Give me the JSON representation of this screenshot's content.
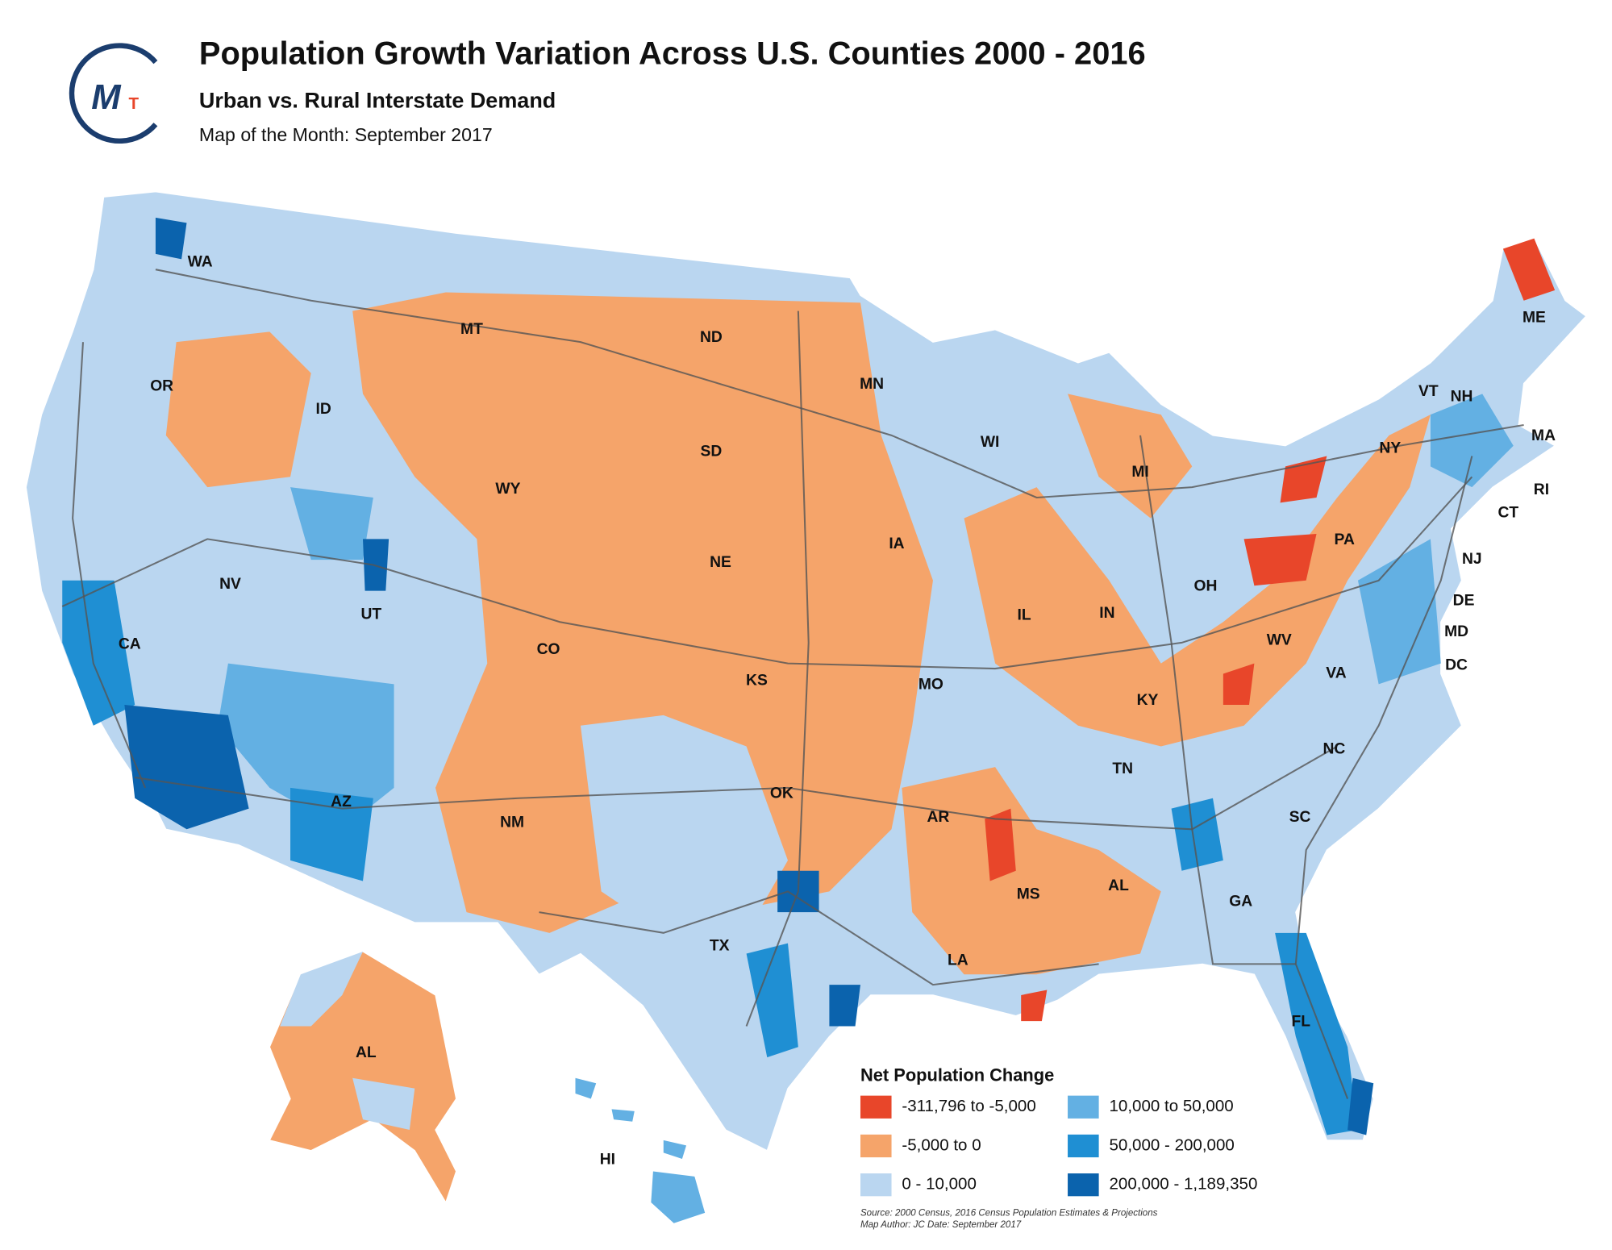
{
  "header": {
    "title": "Population Growth Variation Across U.S. Counties 2000 - 2016",
    "subtitle": "Urban vs. Rural Interstate Demand",
    "map_of_month": "Map of the Month:  September 2017",
    "logo_letters": [
      "M",
      "T"
    ]
  },
  "state_labels": [
    "WA",
    "MT",
    "ND",
    "ME",
    "OR",
    "ID",
    "MN",
    "VT",
    "NH",
    "MA",
    "SD",
    "WI",
    "NY",
    "RI",
    "MI",
    "WY",
    "CT",
    "PA",
    "IA",
    "NE",
    "NJ",
    "NV",
    "OH",
    "DE",
    "IL",
    "IN",
    "UT",
    "CO",
    "CA",
    "WV",
    "MD",
    "DC",
    "VA",
    "KS",
    "MO",
    "KY",
    "OK",
    "TN",
    "NC",
    "AR",
    "AZ",
    "NM",
    "SC",
    "AL",
    "MS",
    "GA",
    "TX",
    "LA",
    "FL",
    "AL",
    "HI"
  ],
  "legend": {
    "title": "Net Population Change",
    "items": [
      {
        "label": "-311,796 to -5,000",
        "color": "#e8462a"
      },
      {
        "label": "-5,000 to 0",
        "color": "#f5a46a"
      },
      {
        "label": "0 - 10,000",
        "color": "#bad6f0"
      },
      {
        "label": "10,000 to 50,000",
        "color": "#63b0e3"
      },
      {
        "label": "50,000 - 200,000",
        "color": "#1f8fd3"
      },
      {
        "label": "200,000 - 1,189,350",
        "color": "#0b63ad"
      }
    ]
  },
  "source": "Source: 2000 Census, 2016 Census Population Estimates & Projections",
  "author": "Map Author: JC Date: September 2017"
}
